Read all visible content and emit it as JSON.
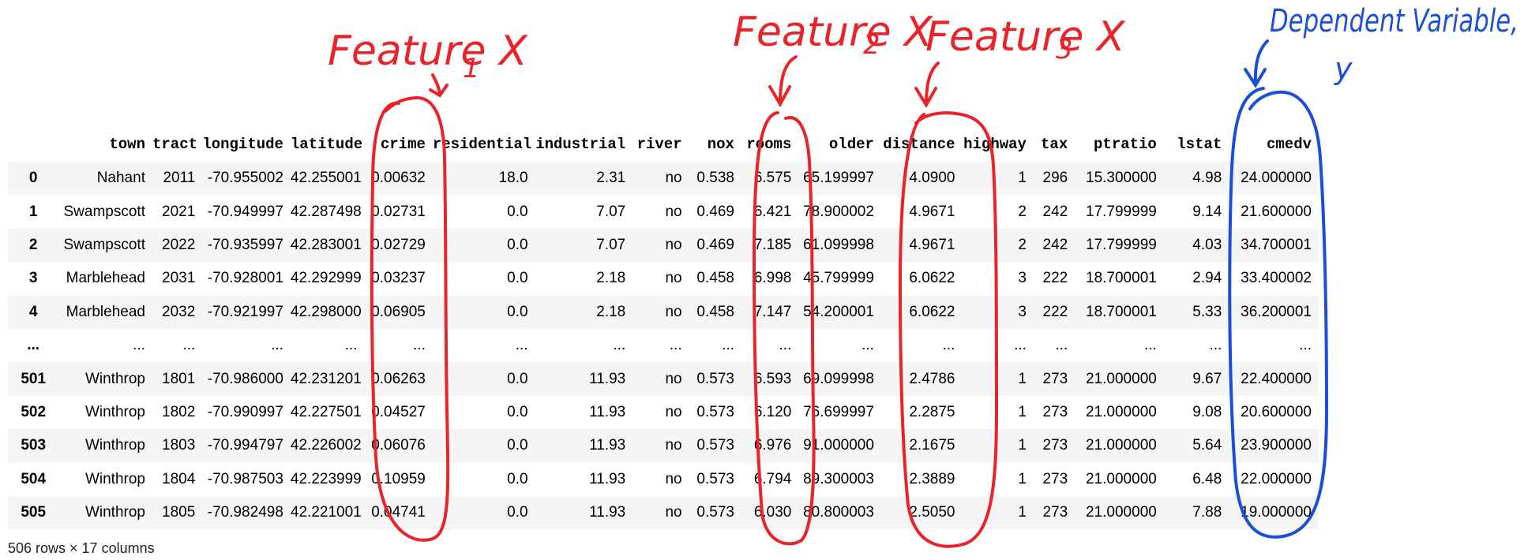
{
  "table": {
    "columns": [
      "town",
      "tract",
      "longitude",
      "latitude",
      "crime",
      "residential",
      "industrial",
      "river",
      "nox",
      "rooms",
      "older",
      "distance",
      "highway",
      "tax",
      "ptratio",
      "lstat",
      "cmedv"
    ],
    "rows": [
      {
        "idx": "0",
        "cells": [
          "Nahant",
          "2011",
          "-70.955002",
          "42.255001",
          "0.00632",
          "18.0",
          "2.31",
          "no",
          "0.538",
          "6.575",
          "65.199997",
          "4.0900",
          "1",
          "296",
          "15.300000",
          "4.98",
          "24.000000"
        ]
      },
      {
        "idx": "1",
        "cells": [
          "Swampscott",
          "2021",
          "-70.949997",
          "42.287498",
          "0.02731",
          "0.0",
          "7.07",
          "no",
          "0.469",
          "6.421",
          "78.900002",
          "4.9671",
          "2",
          "242",
          "17.799999",
          "9.14",
          "21.600000"
        ]
      },
      {
        "idx": "2",
        "cells": [
          "Swampscott",
          "2022",
          "-70.935997",
          "42.283001",
          "0.02729",
          "0.0",
          "7.07",
          "no",
          "0.469",
          "7.185",
          "61.099998",
          "4.9671",
          "2",
          "242",
          "17.799999",
          "4.03",
          "34.700001"
        ]
      },
      {
        "idx": "3",
        "cells": [
          "Marblehead",
          "2031",
          "-70.928001",
          "42.292999",
          "0.03237",
          "0.0",
          "2.18",
          "no",
          "0.458",
          "6.998",
          "45.799999",
          "6.0622",
          "3",
          "222",
          "18.700001",
          "2.94",
          "33.400002"
        ]
      },
      {
        "idx": "4",
        "cells": [
          "Marblehead",
          "2032",
          "-70.921997",
          "42.298000",
          "0.06905",
          "0.0",
          "2.18",
          "no",
          "0.458",
          "7.147",
          "54.200001",
          "6.0622",
          "3",
          "222",
          "18.700001",
          "5.33",
          "36.200001"
        ]
      },
      {
        "idx": "...",
        "cells": [
          "...",
          "...",
          "...",
          "...",
          "...",
          "...",
          "...",
          "...",
          "...",
          "...",
          "...",
          "...",
          "...",
          "...",
          "...",
          "...",
          "..."
        ]
      },
      {
        "idx": "501",
        "cells": [
          "Winthrop",
          "1801",
          "-70.986000",
          "42.231201",
          "0.06263",
          "0.0",
          "11.93",
          "no",
          "0.573",
          "6.593",
          "69.099998",
          "2.4786",
          "1",
          "273",
          "21.000000",
          "9.67",
          "22.400000"
        ]
      },
      {
        "idx": "502",
        "cells": [
          "Winthrop",
          "1802",
          "-70.990997",
          "42.227501",
          "0.04527",
          "0.0",
          "11.93",
          "no",
          "0.573",
          "6.120",
          "76.699997",
          "2.2875",
          "1",
          "273",
          "21.000000",
          "9.08",
          "20.600000"
        ]
      },
      {
        "idx": "503",
        "cells": [
          "Winthrop",
          "1803",
          "-70.994797",
          "42.226002",
          "0.06076",
          "0.0",
          "11.93",
          "no",
          "0.573",
          "6.976",
          "91.000000",
          "2.1675",
          "1",
          "273",
          "21.000000",
          "5.64",
          "23.900000"
        ]
      },
      {
        "idx": "504",
        "cells": [
          "Winthrop",
          "1804",
          "-70.987503",
          "42.223999",
          "0.10959",
          "0.0",
          "11.93",
          "no",
          "0.573",
          "6.794",
          "89.300003",
          "2.3889",
          "1",
          "273",
          "21.000000",
          "6.48",
          "22.000000"
        ]
      },
      {
        "idx": "505",
        "cells": [
          "Winthrop",
          "1805",
          "-70.982498",
          "42.221001",
          "0.04741",
          "0.0",
          "11.93",
          "no",
          "0.573",
          "6.030",
          "80.800003",
          "2.5050",
          "1",
          "273",
          "21.000000",
          "7.88",
          "19.000000"
        ]
      }
    ]
  },
  "shape_text": "506 rows × 17 columns",
  "annotations": {
    "feature1": {
      "text": "Feature X",
      "sub": "1"
    },
    "feature2": {
      "text": "Feature X",
      "sub": "2"
    },
    "feature3": {
      "text": "Feature X",
      "sub": "3"
    },
    "dependent": {
      "text": "Dependent Variable,",
      "sub": "y"
    },
    "colors": {
      "feature": "#e8232a",
      "dependent": "#1c4fd8"
    }
  }
}
